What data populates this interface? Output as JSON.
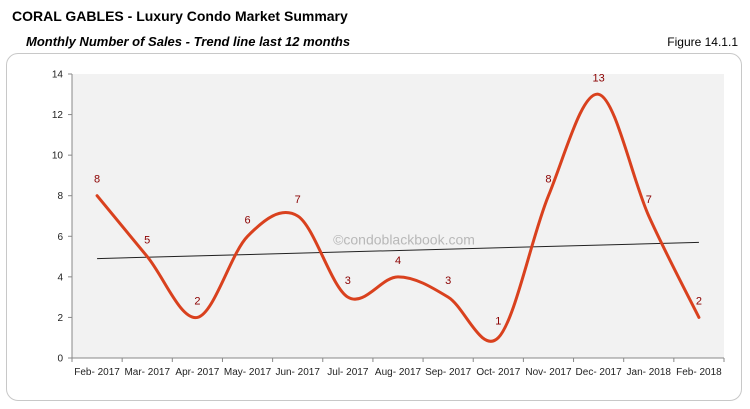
{
  "header": {
    "title": "CORAL GABLES - Luxury Condo Market Summary",
    "subtitle": "Monthly Number of Sales - Trend line last 12 months",
    "figure": "Figure 14.1.1"
  },
  "watermark": "©condoblackbook.com",
  "colors": {
    "series": "#d9411e",
    "trend": "#222222",
    "plot_bg": "#f2f2f2",
    "labels": "#8b0000"
  },
  "chart_data": {
    "type": "line",
    "title": "",
    "xlabel": "",
    "ylabel": "",
    "categories": [
      "Feb- 2017",
      "Mar- 2017",
      "Apr- 2017",
      "May- 2017",
      "Jun- 2017",
      "Jul- 2017",
      "Aug- 2017",
      "Sep- 2017",
      "Oct- 2017",
      "Nov- 2017",
      "Dec- 2017",
      "Jan- 2018",
      "Feb- 2018"
    ],
    "series": [
      {
        "values": [
          8,
          5,
          2,
          6,
          7,
          3,
          4,
          3,
          1,
          8,
          13,
          7,
          2
        ],
        "smooth": true,
        "data_labels": true
      }
    ],
    "trendline": {
      "type": "linear",
      "start": 4.9,
      "end": 5.7
    },
    "ylim": [
      0,
      14
    ],
    "yticks": [
      0,
      2,
      4,
      6,
      8,
      10,
      12,
      14
    ],
    "grid": false
  }
}
